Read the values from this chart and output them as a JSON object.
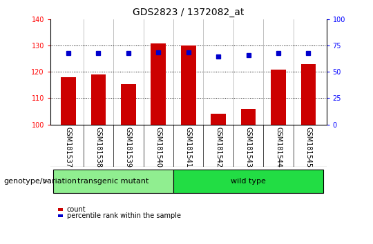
{
  "title": "GDS2823 / 1372082_at",
  "samples": [
    "GSM181537",
    "GSM181538",
    "GSM181539",
    "GSM181540",
    "GSM181541",
    "GSM181542",
    "GSM181543",
    "GSM181544",
    "GSM181545"
  ],
  "counts": [
    118,
    119,
    115.5,
    131,
    130,
    104,
    106,
    121,
    123
  ],
  "percentile_ranks": [
    68,
    68,
    68,
    69,
    69,
    65,
    66,
    68,
    68
  ],
  "transgenic_count": 4,
  "wildtype_count": 5,
  "bar_color": "#CC0000",
  "dot_color": "#0000CC",
  "ylim_left": [
    100,
    140
  ],
  "ylim_right": [
    0,
    100
  ],
  "yticks_left": [
    100,
    110,
    120,
    130,
    140
  ],
  "yticks_right": [
    0,
    25,
    50,
    75,
    100
  ],
  "count_base": 100,
  "transgenic_color": "#90EE90",
  "wildtype_color": "#22DD44",
  "tick_bg_color": "#d0d0d0",
  "title_fontsize": 10,
  "tick_fontsize": 7,
  "axis_fontsize": 7,
  "group_fontsize": 8,
  "legend_fontsize": 7,
  "transgenic_label": "transgenic mutant",
  "wildtype_label": "wild type",
  "group_label": "genotype/variation",
  "legend_count": "count",
  "legend_percentile": "percentile rank within the sample",
  "grid_lines": [
    110,
    120,
    130
  ],
  "bar_width": 0.5
}
